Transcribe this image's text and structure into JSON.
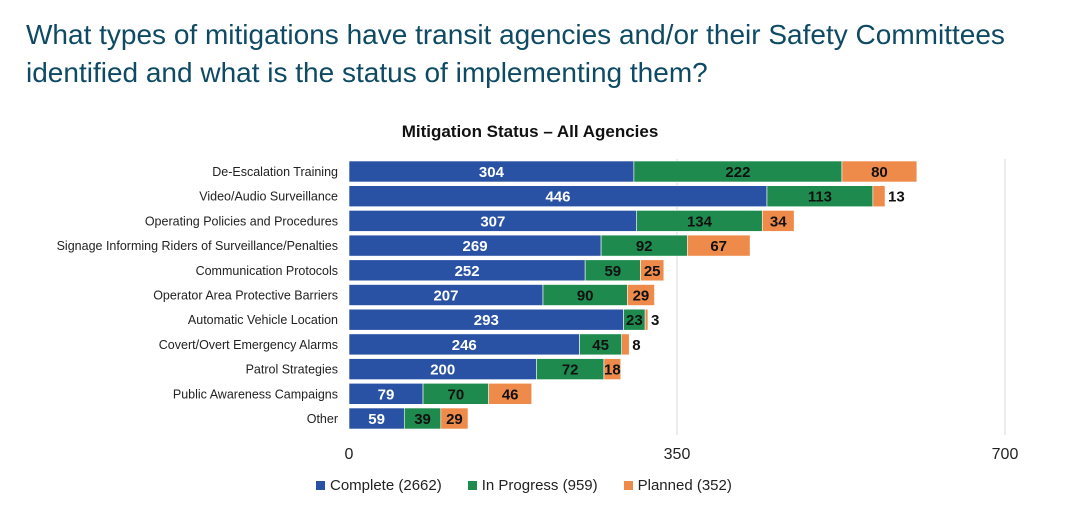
{
  "headline": "What types of mitigations have transit agencies and/or their Safety Committees identified and what is the status of implementing them?",
  "chart_data": {
    "type": "bar",
    "orientation": "horizontal",
    "stacked": true,
    "title": "Mitigation Status – All Agencies",
    "categories": [
      "De-Escalation Training",
      "Video/Audio Surveillance",
      "Operating Policies and Procedures",
      "Signage Informing Riders of Surveillance/Penalties",
      "Communication Protocols",
      "Operator Area Protective Barriers",
      "Automatic Vehicle Location",
      "Covert/Overt Emergency Alarms",
      "Patrol Strategies",
      "Public Awareness Campaigns",
      "Other"
    ],
    "series": [
      {
        "name": "Complete",
        "legend": "Complete (2662)",
        "color": "#2a52a4",
        "label_color": "#ffffff",
        "values": [
          304,
          446,
          307,
          269,
          252,
          207,
          293,
          246,
          200,
          79,
          59
        ]
      },
      {
        "name": "In Progress",
        "legend": "In Progress (959)",
        "color": "#1e8a4e",
        "label_color": "#111111",
        "values": [
          222,
          113,
          134,
          92,
          59,
          90,
          23,
          45,
          72,
          70,
          39
        ]
      },
      {
        "name": "Planned",
        "legend": "Planned (352)",
        "color": "#ee8a4a",
        "label_color": "#111111",
        "values": [
          80,
          13,
          34,
          67,
          25,
          29,
          3,
          8,
          18,
          46,
          29
        ]
      }
    ],
    "xlim": [
      0,
      700
    ],
    "xticks": [
      "0",
      "350",
      "700"
    ],
    "grid": true,
    "legend_position": "bottom"
  }
}
